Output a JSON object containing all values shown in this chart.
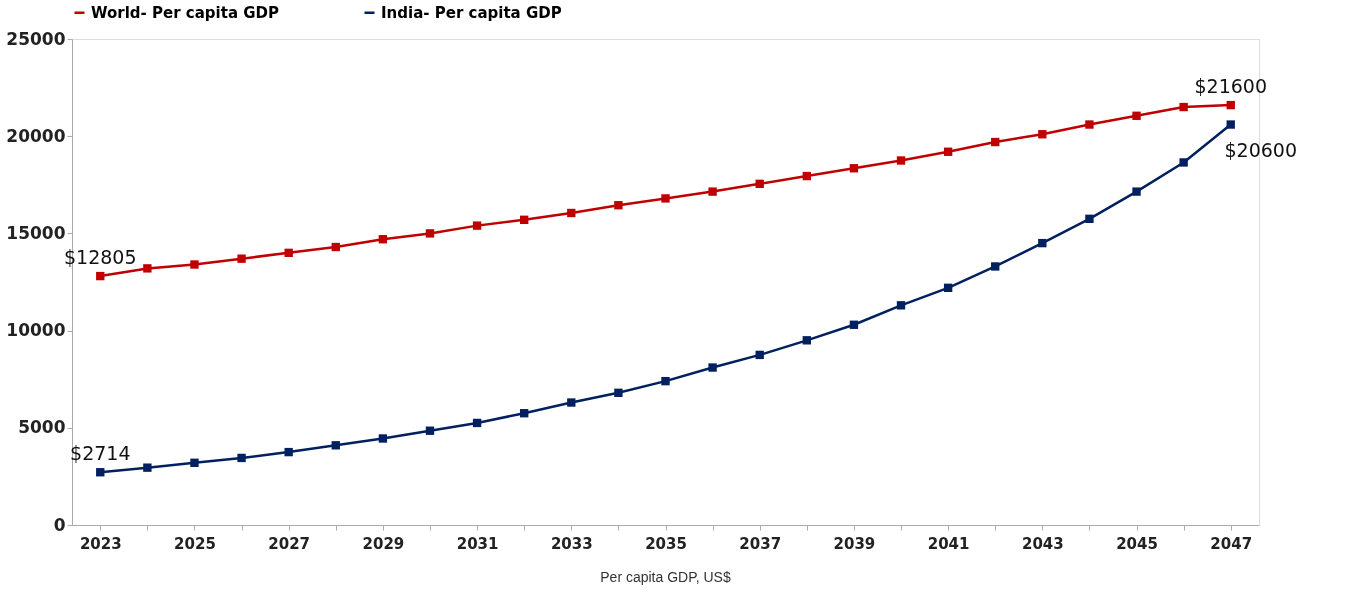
{
  "chart_data": {
    "type": "line",
    "x": [
      2023,
      2024,
      2025,
      2026,
      2027,
      2028,
      2029,
      2030,
      2031,
      2032,
      2033,
      2034,
      2035,
      2036,
      2037,
      2038,
      2039,
      2040,
      2041,
      2042,
      2043,
      2044,
      2045,
      2046,
      2047
    ],
    "series": [
      {
        "name": "World- Per capita GDP",
        "color": "#c00000",
        "values": [
          12805,
          13200,
          13400,
          13700,
          14000,
          14300,
          14700,
          15000,
          15400,
          15700,
          16050,
          16450,
          16800,
          17150,
          17550,
          17950,
          18350,
          18750,
          19200,
          19700,
          20100,
          20600,
          21050,
          21500,
          21600
        ],
        "value_labels": [
          "$12805",
          null,
          null,
          null,
          null,
          null,
          null,
          null,
          null,
          null,
          null,
          null,
          null,
          null,
          null,
          null,
          null,
          null,
          null,
          null,
          null,
          null,
          null,
          null,
          "$21600"
        ]
      },
      {
        "name": "India- Per capita GDP",
        "color": "#002060",
        "values": [
          2714,
          2950,
          3200,
          3450,
          3750,
          4100,
          4450,
          4850,
          5250,
          5750,
          6300,
          6800,
          7400,
          8100,
          8750,
          9500,
          10300,
          11300,
          12200,
          13300,
          14500,
          15750,
          17150,
          18650,
          20600
        ],
        "value_labels": [
          "$2714",
          null,
          null,
          null,
          null,
          null,
          null,
          null,
          null,
          null,
          null,
          null,
          null,
          null,
          null,
          null,
          null,
          null,
          null,
          null,
          null,
          null,
          null,
          null,
          "$20600"
        ]
      }
    ],
    "xlim": [
      2022.4,
      2047.6
    ],
    "xticks": [
      2023,
      {
        "value": 2024,
        "label": null
      },
      2025,
      {
        "value": 2026,
        "label": null
      },
      2027,
      {
        "value": 2028,
        "label": null
      },
      2029,
      {
        "value": 2030,
        "label": null
      },
      2031,
      {
        "value": 2032,
        "label": null
      },
      2033,
      {
        "value": 2034,
        "label": null
      },
      2035,
      {
        "value": 2036,
        "label": null
      },
      2037,
      {
        "value": 2038,
        "label": null
      },
      2039,
      {
        "value": 2040,
        "label": null
      },
      2041,
      {
        "value": 2042,
        "label": null
      },
      2043,
      {
        "value": 2044,
        "label": null
      },
      2045,
      {
        "value": 2046,
        "label": null
      },
      2047
    ],
    "ylim": [
      0,
      25000
    ],
    "yticks": [
      0,
      5000,
      10000,
      15000,
      20000,
      25000
    ],
    "grid": false,
    "legend": "top",
    "marker": "square",
    "line_style": "solid",
    "annotations": [
      "Per capita GDP, US$"
    ]
  }
}
